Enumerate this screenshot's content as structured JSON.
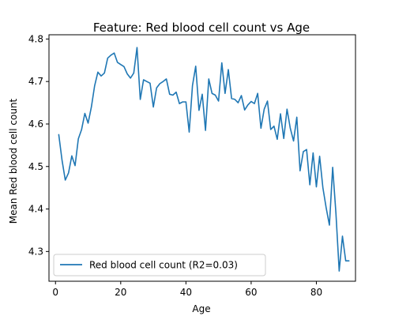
{
  "chart_data": {
    "type": "line",
    "title": "Feature: Red blood cell count vs Age",
    "xlabel": "Age",
    "ylabel": "Mean Red blood cell count",
    "xlim": [
      -2,
      92
    ],
    "ylim": [
      4.23,
      4.81
    ],
    "x_ticks": [
      0,
      20,
      40,
      60,
      80
    ],
    "y_ticks": [
      4.3,
      4.4,
      4.5,
      4.6,
      4.7,
      4.8
    ],
    "x_tick_labels": [
      "0",
      "20",
      "40",
      "60",
      "80"
    ],
    "y_tick_labels": [
      "4.3",
      "4.4",
      "4.5",
      "4.6",
      "4.7",
      "4.8"
    ],
    "grid": false,
    "legend_position": "lower-left",
    "series": [
      {
        "name": "Red blood cell count (R2=0.03)",
        "color": "#1f77b4",
        "x": [
          1,
          2,
          3,
          4,
          5,
          6,
          7,
          8,
          9,
          10,
          11,
          12,
          13,
          14,
          15,
          16,
          17,
          18,
          19,
          20,
          21,
          22,
          23,
          24,
          25,
          26,
          27,
          28,
          29,
          30,
          31,
          32,
          33,
          34,
          35,
          36,
          37,
          38,
          39,
          40,
          41,
          42,
          43,
          44,
          45,
          46,
          47,
          48,
          49,
          50,
          51,
          52,
          53,
          54,
          55,
          56,
          57,
          58,
          59,
          60,
          61,
          62,
          63,
          64,
          65,
          66,
          67,
          68,
          69,
          70,
          71,
          72,
          73,
          74,
          75,
          76,
          77,
          78,
          79,
          80,
          81,
          82,
          83,
          84,
          85,
          86,
          87,
          88,
          89,
          90
        ],
        "y": [
          4.575,
          4.515,
          4.468,
          4.485,
          4.525,
          4.502,
          4.565,
          4.587,
          4.625,
          4.602,
          4.64,
          4.69,
          4.722,
          4.713,
          4.72,
          4.755,
          4.762,
          4.767,
          4.745,
          4.74,
          4.735,
          4.718,
          4.708,
          4.72,
          4.78,
          4.658,
          4.704,
          4.7,
          4.696,
          4.64,
          4.685,
          4.695,
          4.7,
          4.706,
          4.67,
          4.668,
          4.675,
          4.648,
          4.652,
          4.652,
          4.581,
          4.69,
          4.736,
          4.632,
          4.67,
          4.585,
          4.706,
          4.672,
          4.668,
          4.654,
          4.744,
          4.672,
          4.728,
          4.66,
          4.658,
          4.65,
          4.667,
          4.633,
          4.645,
          4.653,
          4.648,
          4.672,
          4.59,
          4.635,
          4.654,
          4.587,
          4.595,
          4.564,
          4.624,
          4.566,
          4.635,
          4.59,
          4.56,
          4.616,
          4.49,
          4.535,
          4.54,
          4.457,
          4.532,
          4.452,
          4.524,
          4.45,
          4.403,
          4.362,
          4.498,
          4.39,
          4.254,
          4.336,
          4.278,
          4.278
        ]
      }
    ]
  }
}
